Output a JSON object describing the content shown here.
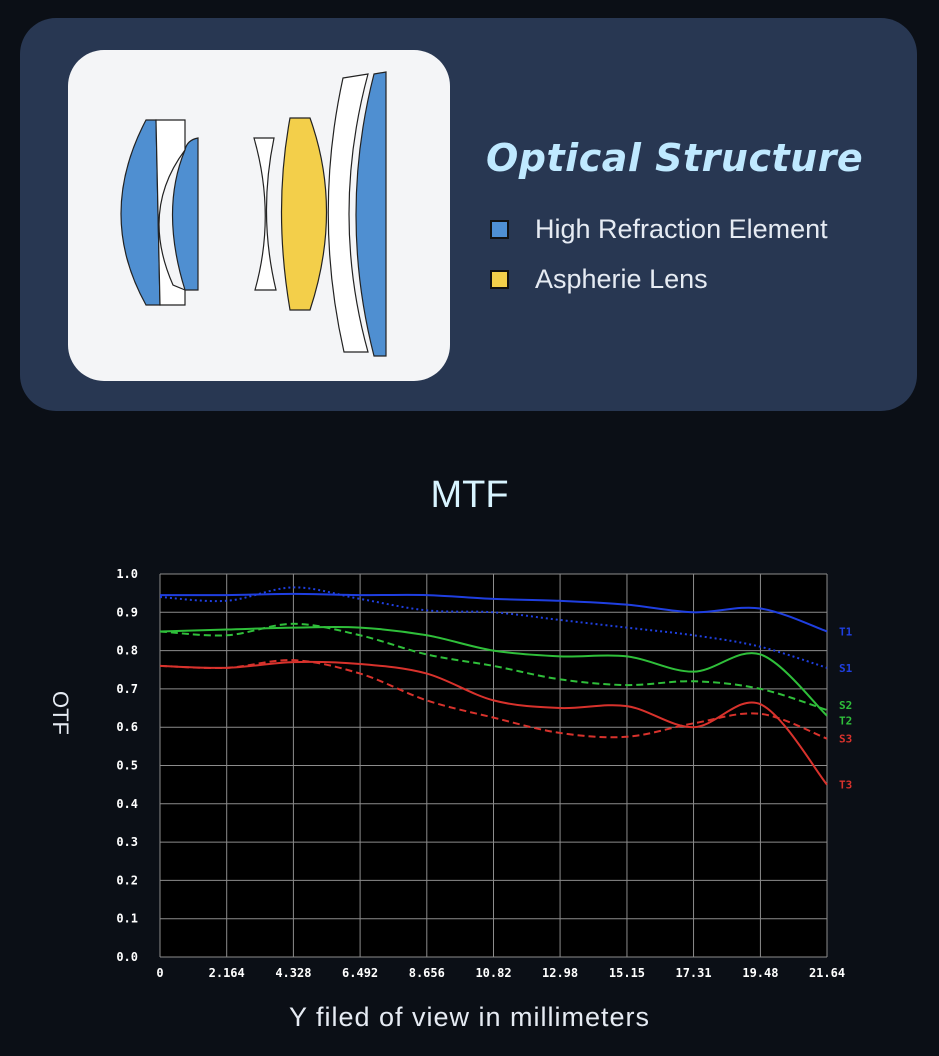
{
  "optical_structure": {
    "title": "Optical Structure",
    "legend": [
      {
        "label": "High Refraction Element",
        "color": "#4f8fd1"
      },
      {
        "label": "Aspherie Lens",
        "color": "#f3cf4a"
      }
    ]
  },
  "chart_data": {
    "type": "line",
    "title": "MTF",
    "xlabel": "Y filed of view in millimeters",
    "ylabel": "OTF",
    "xlim": [
      0,
      21.64
    ],
    "ylim": [
      0,
      1.0
    ],
    "grid": true,
    "x_ticks": [
      "0",
      "2.164",
      "4.328",
      "6.492",
      "8.656",
      "10.82",
      "12.98",
      "15.15",
      "17.31",
      "19.48",
      "21.64"
    ],
    "y_ticks": [
      "0.0",
      "0.1",
      "0.2",
      "0.3",
      "0.4",
      "0.5",
      "0.6",
      "0.7",
      "0.8",
      "0.9",
      "1.0"
    ],
    "x": [
      0,
      2.164,
      4.328,
      6.492,
      8.656,
      10.82,
      12.98,
      15.15,
      17.31,
      19.48,
      21.64
    ],
    "series": [
      {
        "name": "T1",
        "color": "#1f3fe0",
        "style": "solid",
        "values": [
          0.945,
          0.945,
          0.948,
          0.945,
          0.945,
          0.935,
          0.93,
          0.92,
          0.9,
          0.91,
          0.85
        ]
      },
      {
        "name": "S1",
        "color": "#1f3fe0",
        "style": "dotted",
        "values": [
          0.94,
          0.93,
          0.965,
          0.935,
          0.905,
          0.9,
          0.88,
          0.86,
          0.84,
          0.81,
          0.755
        ]
      },
      {
        "name": "S2",
        "color": "#2fbf3a",
        "style": "dashed",
        "values": [
          0.85,
          0.84,
          0.87,
          0.84,
          0.79,
          0.76,
          0.725,
          0.71,
          0.72,
          0.7,
          0.645
        ]
      },
      {
        "name": "T2",
        "color": "#2fbf3a",
        "style": "solid",
        "values": [
          0.85,
          0.855,
          0.86,
          0.86,
          0.84,
          0.8,
          0.785,
          0.785,
          0.745,
          0.79,
          0.63
        ]
      },
      {
        "name": "S3",
        "color": "#d8322c",
        "style": "dashed",
        "values": [
          0.76,
          0.755,
          0.775,
          0.74,
          0.67,
          0.625,
          0.585,
          0.575,
          0.61,
          0.635,
          0.57
        ]
      },
      {
        "name": "T3",
        "color": "#d8322c",
        "style": "solid",
        "values": [
          0.76,
          0.755,
          0.77,
          0.765,
          0.74,
          0.67,
          0.65,
          0.655,
          0.6,
          0.66,
          0.45
        ]
      }
    ]
  }
}
